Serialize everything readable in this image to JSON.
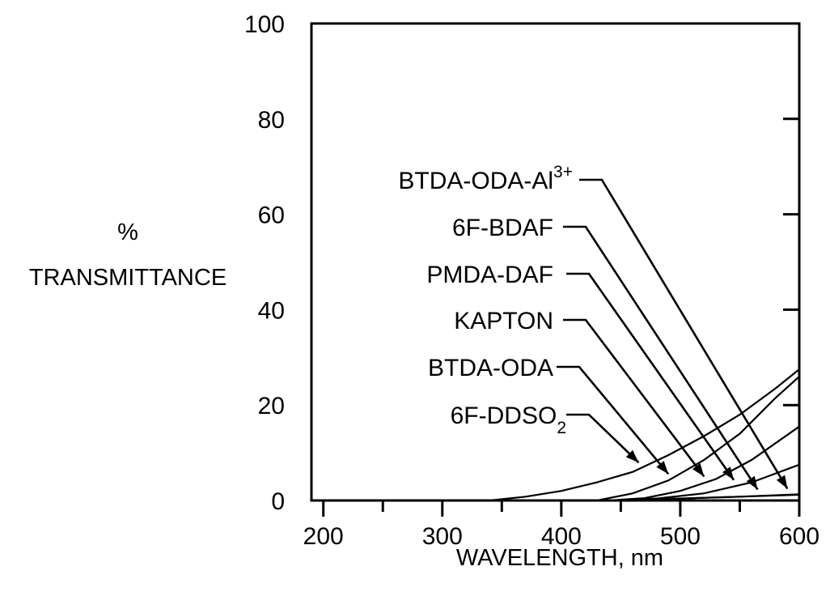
{
  "chart_data": {
    "type": "line",
    "title": "",
    "xlabel": "WAVELENGTH, nm",
    "ylabel": [
      "%",
      "TRANSMITTANCE"
    ],
    "xlim": [
      190,
      600
    ],
    "ylim": [
      0,
      100
    ],
    "grid": false,
    "x_ticks": [
      200,
      300,
      400,
      500,
      600
    ],
    "y_ticks": [
      0,
      20,
      40,
      60,
      80,
      100
    ],
    "series": [
      {
        "name": "BTDA-ODA-Al",
        "name_sup": "3+",
        "x": [
          450,
          500,
          550,
          600
        ],
        "y": [
          0.1,
          0.4,
          0.8,
          1.2
        ],
        "label_x": 590
      },
      {
        "name": "6F-BDAF",
        "x": [
          450,
          500,
          550,
          600
        ],
        "y": [
          0.1,
          0.4,
          0.8,
          1.3
        ],
        "label_x": 565
      },
      {
        "name": "PMDA-DAF",
        "x": [
          440,
          480,
          520,
          560,
          600
        ],
        "y": [
          0,
          0.4,
          1.5,
          3.8,
          7.5
        ],
        "label_x": 545
      },
      {
        "name": "KAPTON",
        "x": [
          440,
          470,
          500,
          530,
          560,
          600
        ],
        "y": [
          0,
          0.5,
          2,
          4.5,
          8.5,
          15.5
        ],
        "label_x": 520
      },
      {
        "name": "BTDA-ODA",
        "x": [
          430,
          460,
          490,
          520,
          550,
          580,
          600
        ],
        "y": [
          0,
          1.5,
          4.2,
          8.5,
          14,
          21.5,
          26
        ],
        "label_x": 490
      },
      {
        "name": "6F-DDSO",
        "name_sub": "2",
        "x": [
          340,
          370,
          400,
          430,
          460,
          490,
          520,
          550,
          580,
          600
        ],
        "y": [
          0,
          0.8,
          2,
          3.8,
          6,
          9.5,
          13.5,
          18,
          23.5,
          27.5
        ],
        "label_x": 465
      }
    ]
  }
}
